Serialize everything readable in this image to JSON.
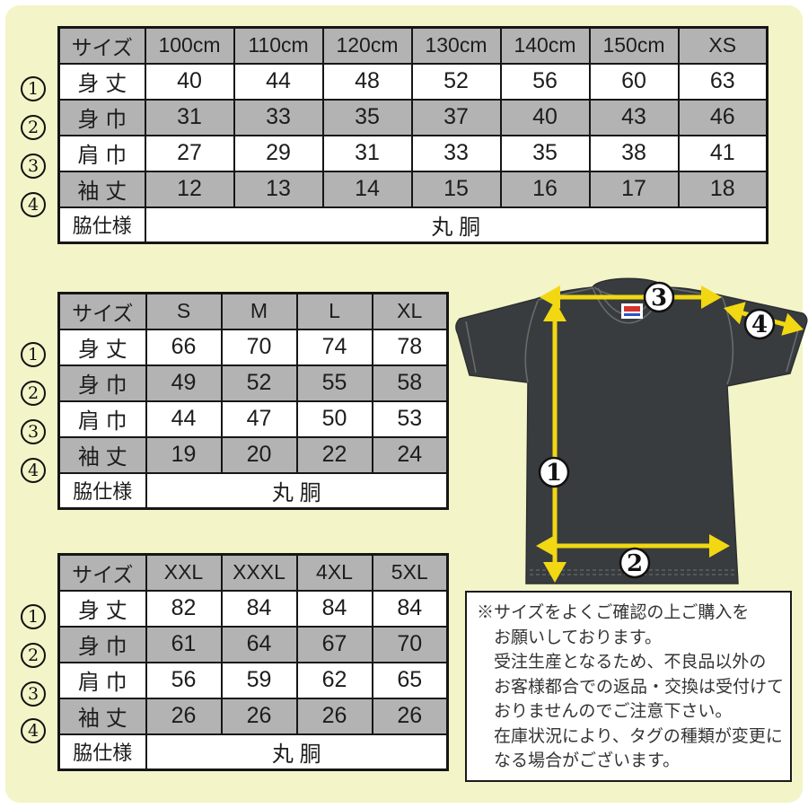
{
  "page": {
    "background_color": "#f3f4c8",
    "table_gray": "#b3b3b3",
    "arrow_color": "#f2d713",
    "shirt_color": "#383c3e"
  },
  "tables": [
    {
      "size_header": "サイズ",
      "sizes": [
        "100cm",
        "110cm",
        "120cm",
        "130cm",
        "140cm",
        "150cm",
        "XS"
      ],
      "rows": [
        {
          "num": "1",
          "label": "身 丈",
          "values": [
            "40",
            "44",
            "48",
            "52",
            "56",
            "60",
            "63"
          ]
        },
        {
          "num": "2",
          "label": "身 巾",
          "values": [
            "31",
            "33",
            "35",
            "37",
            "40",
            "43",
            "46"
          ]
        },
        {
          "num": "3",
          "label": "肩 巾",
          "values": [
            "27",
            "29",
            "31",
            "33",
            "35",
            "38",
            "41"
          ]
        },
        {
          "num": "4",
          "label": "袖 丈",
          "values": [
            "12",
            "13",
            "14",
            "15",
            "16",
            "17",
            "18"
          ]
        }
      ],
      "footer_label": "脇仕様",
      "footer_value": "丸 胴"
    },
    {
      "size_header": "サイズ",
      "sizes": [
        "S",
        "M",
        "L",
        "XL"
      ],
      "rows": [
        {
          "num": "1",
          "label": "身 丈",
          "values": [
            "66",
            "70",
            "74",
            "78"
          ]
        },
        {
          "num": "2",
          "label": "身 巾",
          "values": [
            "49",
            "52",
            "55",
            "58"
          ]
        },
        {
          "num": "3",
          "label": "肩 巾",
          "values": [
            "44",
            "47",
            "50",
            "53"
          ]
        },
        {
          "num": "4",
          "label": "袖 丈",
          "values": [
            "19",
            "20",
            "22",
            "24"
          ]
        }
      ],
      "footer_label": "脇仕様",
      "footer_value": "丸 胴"
    },
    {
      "size_header": "サイズ",
      "sizes": [
        "XXL",
        "XXXL",
        "4XL",
        "5XL"
      ],
      "rows": [
        {
          "num": "1",
          "label": "身 丈",
          "values": [
            "82",
            "84",
            "84",
            "84"
          ]
        },
        {
          "num": "2",
          "label": "身 巾",
          "values": [
            "61",
            "64",
            "67",
            "70"
          ]
        },
        {
          "num": "3",
          "label": "肩 巾",
          "values": [
            "56",
            "59",
            "62",
            "65"
          ]
        },
        {
          "num": "4",
          "label": "袖 丈",
          "values": [
            "26",
            "26",
            "26",
            "26"
          ]
        }
      ],
      "footer_label": "脇仕様",
      "footer_value": "丸 胴"
    }
  ],
  "diagram": {
    "markers": [
      "1",
      "2",
      "3",
      "4"
    ]
  },
  "notes": {
    "lines": [
      "※サイズをよくご確認の上ご購入を",
      "お願いしております。",
      "受注生産となるため、不良品以外の",
      "お客様都合での返品・交換は受付けて",
      "おりませんのでご注意下さい。",
      "在庫状況により、タグの種類が変更に",
      "なる場合がございます。"
    ]
  }
}
